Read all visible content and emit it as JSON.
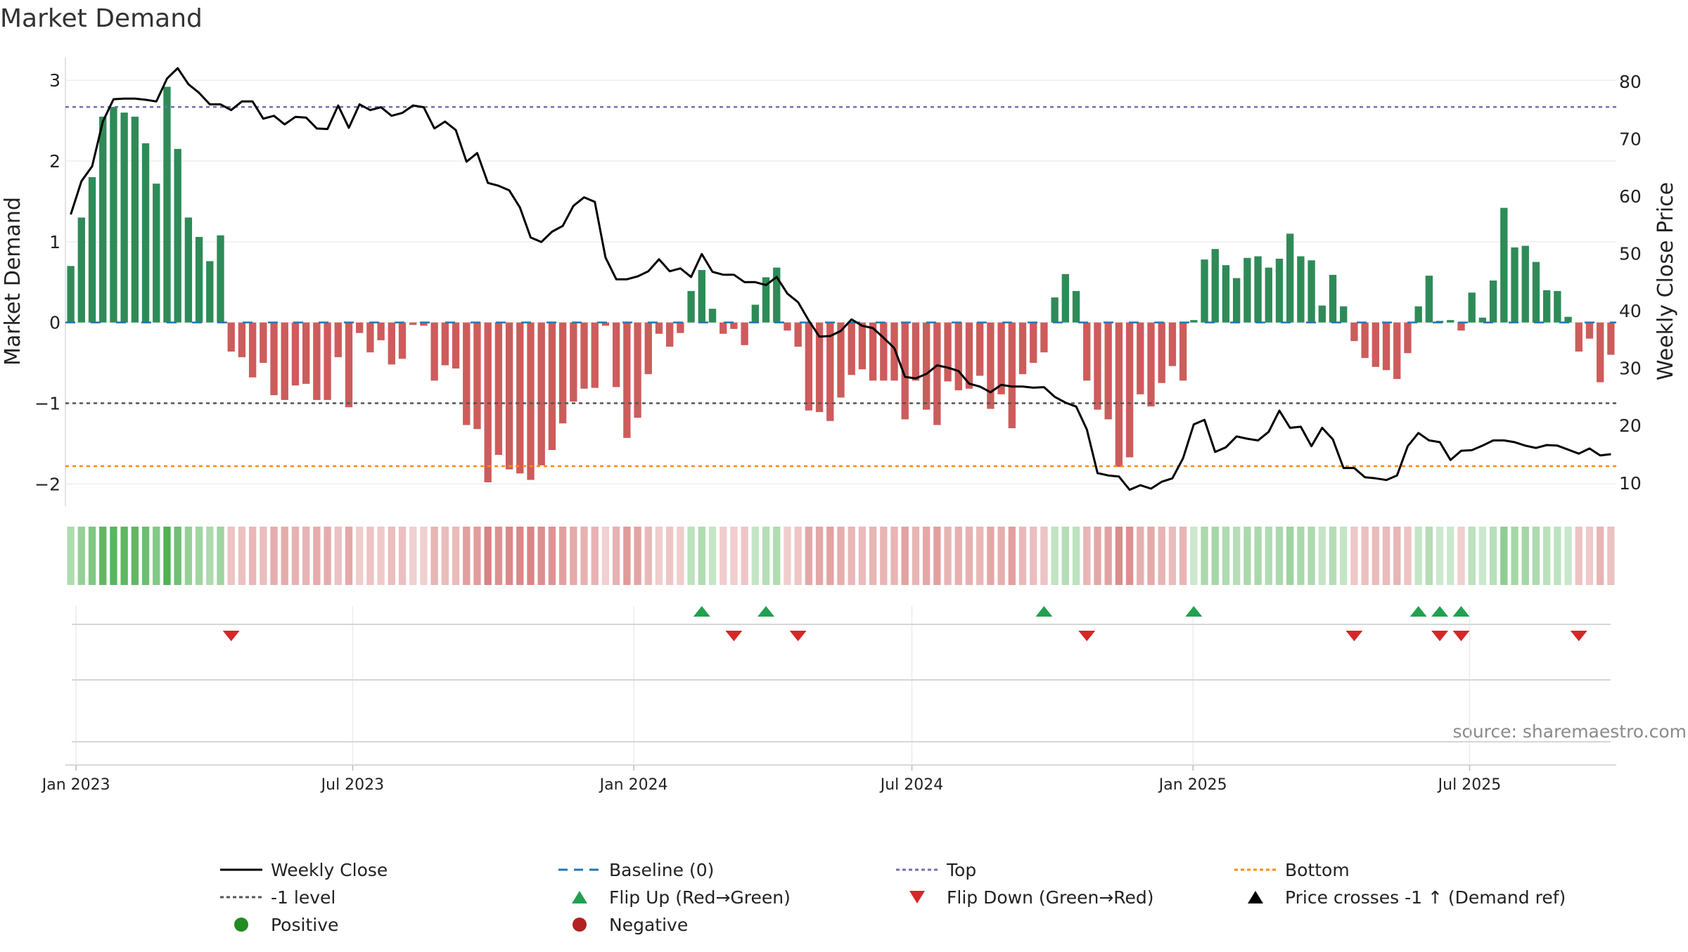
{
  "chart_data": {
    "type": "bar",
    "title": "Market Demand",
    "ylabel": "Market Demand",
    "y2label": "Weekly Close Price",
    "ylim": [
      -2.25,
      3.15
    ],
    "y2lim": [
      6.3,
      82.3
    ],
    "yticks": [
      "3",
      "2",
      "1",
      "0",
      "−1",
      "−2"
    ],
    "y2ticks": [
      "80",
      "70",
      "60",
      "50",
      "40",
      "30",
      "20",
      "10"
    ],
    "xticks": [
      "Jan 2023",
      "Jul 2023",
      "Jan 2024",
      "Jul 2024",
      "Jan 2025",
      "Jul 2025"
    ],
    "xtick_dates": [
      "2023-01-01",
      "2023-07-01",
      "2024-01-01",
      "2024-07-01",
      "2025-01-01",
      "2025-07-01"
    ],
    "x_start": "2022-12-25",
    "grid": true,
    "reference_lines": {
      "baseline": 0,
      "top": 2.67,
      "minus_one_level": -1,
      "bottom": -1.78
    },
    "series": [
      {
        "name": "Market Demand",
        "axis": "left",
        "values": [
          0.7,
          1.3,
          1.8,
          2.55,
          2.67,
          2.6,
          2.55,
          2.22,
          1.72,
          2.92,
          2.15,
          1.3,
          1.06,
          0.76,
          1.08,
          -0.36,
          -0.43,
          -0.68,
          -0.5,
          -0.9,
          -0.96,
          -0.78,
          -0.76,
          -0.96,
          -0.96,
          -0.43,
          -1.05,
          -0.13,
          -0.37,
          -0.22,
          -0.52,
          -0.45,
          -0.03,
          -0.04,
          -0.72,
          -0.53,
          -0.57,
          -1.27,
          -1.32,
          -1.98,
          -1.64,
          -1.82,
          -1.87,
          -1.95,
          -1.77,
          -1.58,
          -1.25,
          -0.98,
          -0.82,
          -0.81,
          -0.04,
          -0.8,
          -1.43,
          -1.18,
          -0.64,
          -0.14,
          -0.3,
          -0.13,
          0.39,
          0.65,
          0.17,
          -0.14,
          -0.08,
          -0.28,
          0.22,
          0.56,
          0.68,
          -0.1,
          -0.3,
          -1.09,
          -1.11,
          -1.22,
          -0.93,
          -0.65,
          -0.58,
          -0.72,
          -0.72,
          -0.72,
          -1.2,
          -0.72,
          -1.08,
          -1.27,
          -0.73,
          -0.84,
          -0.82,
          -0.66,
          -1.07,
          -0.89,
          -1.31,
          -0.64,
          -0.5,
          -0.37,
          0.31,
          0.6,
          0.39,
          -0.72,
          -1.08,
          -1.2,
          -1.79,
          -1.67,
          -0.89,
          -1.04,
          -0.75,
          -0.54,
          -0.72,
          0.03,
          0.78,
          0.91,
          0.71,
          0.55,
          0.8,
          0.82,
          0.68,
          0.79,
          1.1,
          0.82,
          0.77,
          0.21,
          0.59,
          0.2,
          -0.23,
          -0.44,
          -0.55,
          -0.59,
          -0.7,
          -0.38,
          0.2,
          0.58,
          0.02,
          0.03,
          -0.1,
          0.37,
          0.06,
          0.52,
          1.42,
          0.93,
          0.95,
          0.75,
          0.4,
          0.39,
          0.07,
          -0.36,
          -0.2,
          -0.74,
          -0.4
        ]
      },
      {
        "name": "Weekly Close",
        "axis": "right",
        "values": [
          56.8,
          62.6,
          65.2,
          73.0,
          76.9,
          77.0,
          77.0,
          76.8,
          76.5,
          80.5,
          82.3,
          79.5,
          78.0,
          76.0,
          76.0,
          75.0,
          76.5,
          76.5,
          73.5,
          74.0,
          72.5,
          73.8,
          73.7,
          71.8,
          71.7,
          75.8,
          71.9,
          76.0,
          75.0,
          75.5,
          74.0,
          74.5,
          75.8,
          75.5,
          71.8,
          73.0,
          71.5,
          66.0,
          67.5,
          62.3,
          61.8,
          61.0,
          58.0,
          52.8,
          52.0,
          53.8,
          54.8,
          58.3,
          59.8,
          59.0,
          49.3,
          45.5,
          45.5,
          46.0,
          46.9,
          49.0,
          46.9,
          47.4,
          45.9,
          49.9,
          46.8,
          46.3,
          46.3,
          45.0,
          45.0,
          44.5,
          45.9,
          43.0,
          41.5,
          38.3,
          35.5,
          35.6,
          36.5,
          38.5,
          37.4,
          37.0,
          35.3,
          33.5,
          28.5,
          28.2,
          29.0,
          30.5,
          30.1,
          29.5,
          27.3,
          26.8,
          25.8,
          27.1,
          26.8,
          26.8,
          26.6,
          26.7,
          25.0,
          24.0,
          23.3,
          19.3,
          11.7,
          11.3,
          11.1,
          8.8,
          9.6,
          9.0,
          10.2,
          10.8,
          14.3,
          20.2,
          21.0,
          15.4,
          16.2,
          18.1,
          17.7,
          17.4,
          18.9,
          22.6,
          19.6,
          19.8,
          16.4,
          19.6,
          17.6,
          12.6,
          12.6,
          11.0,
          10.8,
          10.5,
          11.3,
          16.4,
          18.7,
          17.4,
          17.1,
          14.0,
          15.6,
          15.7,
          16.5,
          17.4,
          17.4,
          17.1,
          16.5,
          16.1,
          16.6,
          16.5,
          15.8,
          15.1,
          16.0,
          14.8,
          15.0
        ]
      }
    ],
    "flip_up_weeks": [
      59,
      65,
      91,
      105,
      126,
      128,
      130
    ],
    "flip_down_weeks": [
      15,
      62,
      68,
      95,
      120,
      128,
      130,
      141
    ],
    "colors": {
      "positive_bar": "#2e8b57",
      "negative_bar": "#cd5c5c",
      "close_line": "#000000",
      "baseline": "#1f77b4",
      "top_line": "#7070b0",
      "minus_one_line": "#555555",
      "bottom_line": "#ff8c00",
      "flip_up": "#22a050",
      "flip_down": "#d62728",
      "positive_marker": "#228b22",
      "negative_marker": "#b22222"
    }
  },
  "legend": [
    {
      "label": "Weekly Close",
      "icon": "solid-line",
      "color": "#000000"
    },
    {
      "label": "Baseline (0)",
      "icon": "dashed-line",
      "color": "#1f77b4"
    },
    {
      "label": "Top",
      "icon": "dotted-line",
      "color": "#7070b0"
    },
    {
      "label": "Bottom",
      "icon": "dotted-line",
      "color": "#ff8c00"
    },
    {
      "label": "-1 level",
      "icon": "dotted-line",
      "color": "#555555"
    },
    {
      "label": "Flip Up (Red→Green)",
      "icon": "triangle-up",
      "color": "#22a050"
    },
    {
      "label": "Flip Down (Green→Red)",
      "icon": "triangle-down",
      "color": "#d62728"
    },
    {
      "label": "Price crosses -1 ↑ (Demand ref)",
      "icon": "triangle-up",
      "color": "#000000"
    },
    {
      "label": "Positive",
      "icon": "circle",
      "color": "#228b22"
    },
    {
      "label": "Negative",
      "icon": "circle",
      "color": "#b22222"
    }
  ],
  "source": "source: sharemaestro.com"
}
